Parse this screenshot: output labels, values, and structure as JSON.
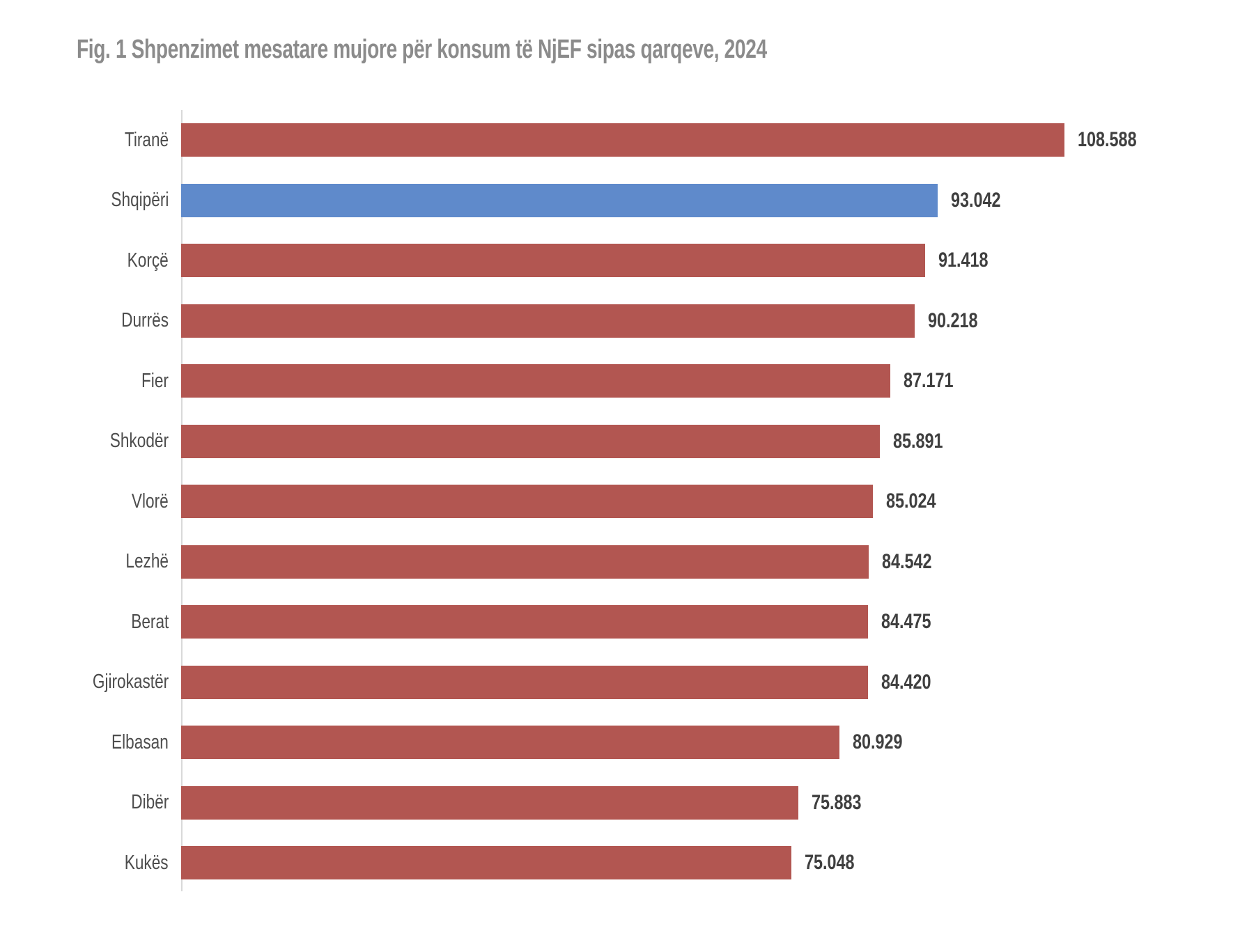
{
  "page": {
    "title": "Fig. 1 Shpenzimet mesatare mujore për konsum të NjEF sipas qarqeve, 2024"
  },
  "chart_data": {
    "type": "bar",
    "orientation": "horizontal",
    "title": "Fig. 1 Shpenzimet mesatare mujore për konsum të NjEF sipas qarqeve, 2024",
    "categories": [
      "Tiranë",
      "Shqipëri",
      "Korçë",
      "Durrës",
      "Fier",
      "Shkodër",
      "Vlorë",
      "Lezhë",
      "Berat",
      "Gjirokastër",
      "Elbasan",
      "Dibër",
      "Kukës"
    ],
    "values": [
      108588,
      93042,
      91418,
      90218,
      87171,
      85891,
      85024,
      84542,
      84475,
      84420,
      80929,
      75883,
      75048
    ],
    "value_labels": [
      "108.588",
      "93.042",
      "91.418",
      "90.218",
      "87.171",
      "85.891",
      "85.024",
      "84.542",
      "84.475",
      "84.420",
      "80.929",
      "75.883",
      "75.048"
    ],
    "highlight_category": "Shqipëri",
    "xlabel": "",
    "ylabel": "",
    "xlim": [
      0,
      108588
    ],
    "grid": false,
    "legend": false,
    "data_labels": true,
    "colors": {
      "bar_default": "#B25651",
      "bar_highlight": "#5F8ACB",
      "title_text": "#8B8B8B",
      "category_text": "#4D4D4D",
      "value_text": "#3F3F3F",
      "axis_line": "#D9D9D9",
      "background": "#FFFFFF"
    }
  }
}
